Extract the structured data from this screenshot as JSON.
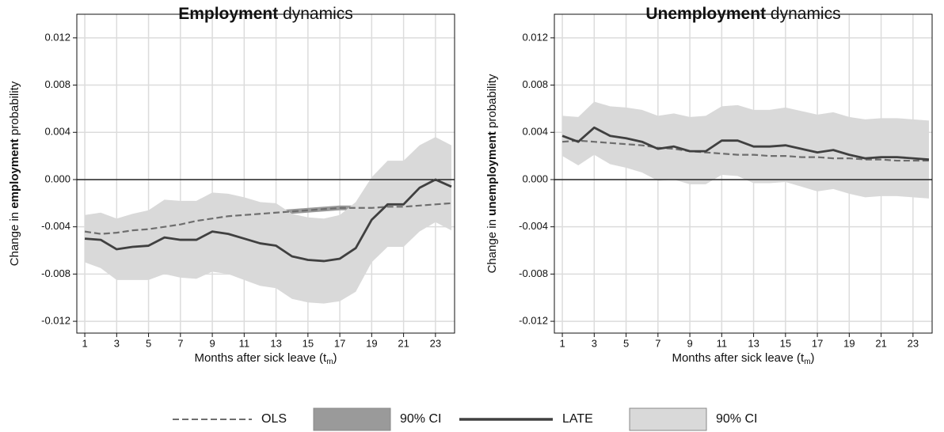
{
  "chart_data": [
    {
      "type": "line",
      "title": [
        "Employment",
        "dynamics"
      ],
      "ylabel": [
        "Change in",
        "employment",
        "probability"
      ],
      "xlabel": [
        "Months after sick leave (t",
        "m",
        ")"
      ],
      "x": [
        1,
        2,
        3,
        4,
        5,
        6,
        7,
        8,
        9,
        10,
        11,
        12,
        13,
        14,
        15,
        16,
        17,
        18,
        19,
        20,
        21,
        22,
        23,
        24
      ],
      "xlim": [
        0.5,
        24.2
      ],
      "xticks": [
        1,
        3,
        5,
        7,
        9,
        11,
        13,
        15,
        17,
        19,
        21,
        23
      ],
      "ylim": [
        -0.013,
        0.014
      ],
      "yticks": [
        -0.012,
        -0.008,
        -0.004,
        {
          "value": 0,
          "label": "0.000"
        },
        0.004,
        0.008,
        0.012
      ],
      "refline": 0,
      "grid": true,
      "series": [
        {
          "name": "OLS",
          "kind": "dashed",
          "color": "#6e6e6e",
          "values": [
            -0.0044,
            -0.0046,
            -0.0045,
            -0.0043,
            -0.0042,
            -0.004,
            -0.0038,
            -0.0035,
            -0.0033,
            -0.0031,
            -0.003,
            -0.0029,
            -0.0028,
            -0.0027,
            -0.0026,
            -0.0025,
            -0.0024,
            -0.0024,
            -0.0024,
            -0.0023,
            -0.0023,
            -0.0022,
            -0.0021,
            -0.002
          ]
        },
        {
          "name": "90% CI",
          "kind": "band",
          "color": "#9a9a9a",
          "upper": [
            -0.0042,
            -0.0044,
            -0.0043,
            -0.0041,
            -0.004,
            -0.0038,
            -0.0036,
            -0.0033,
            -0.0031,
            -0.0029,
            -0.0028,
            -0.0027,
            -0.0026,
            -0.0025,
            -0.0024,
            -0.0023,
            -0.0022,
            -0.0022,
            -0.0022,
            -0.0021,
            -0.0021,
            -0.002,
            -0.0019,
            -0.0018
          ],
          "lower": [
            -0.0046,
            -0.0048,
            -0.0047,
            -0.0045,
            -0.0044,
            -0.0042,
            -0.004,
            -0.0037,
            -0.0035,
            -0.0033,
            -0.0032,
            -0.0031,
            -0.003,
            -0.0029,
            -0.0028,
            -0.0027,
            -0.0026,
            -0.0026,
            -0.0026,
            -0.0025,
            -0.0025,
            -0.0024,
            -0.0023,
            -0.0022
          ]
        },
        {
          "name": "LATE",
          "kind": "solid",
          "color": "#404040",
          "values": [
            -0.005,
            -0.0051,
            -0.0059,
            -0.0057,
            -0.0056,
            -0.0049,
            -0.0051,
            -0.0051,
            -0.0044,
            -0.0046,
            -0.005,
            -0.0054,
            -0.0056,
            -0.0065,
            -0.0068,
            -0.0069,
            -0.0067,
            -0.0058,
            -0.0034,
            -0.0021,
            -0.0021,
            -0.0007,
            0,
            -0.0006
          ]
        },
        {
          "name": "90% CI",
          "kind": "band",
          "color": "#d9d9d9",
          "upper": [
            -0.003,
            -0.0028,
            -0.0033,
            -0.0029,
            -0.0026,
            -0.0017,
            -0.0018,
            -0.0018,
            -0.0011,
            -0.0012,
            -0.0015,
            -0.0019,
            -0.002,
            -0.0029,
            -0.0032,
            -0.0033,
            -0.003,
            -0.0019,
            0.0002,
            0.0016,
            0.0016,
            0.0029,
            0.0036,
            0.0029
          ],
          "lower": [
            -0.007,
            -0.0075,
            -0.0085,
            -0.0085,
            -0.0085,
            -0.008,
            -0.0083,
            -0.0084,
            -0.0078,
            -0.008,
            -0.0085,
            -0.009,
            -0.0092,
            -0.0101,
            -0.0104,
            -0.0105,
            -0.0103,
            -0.0095,
            -0.007,
            -0.0057,
            -0.0057,
            -0.0044,
            -0.0036,
            -0.0043
          ]
        }
      ]
    },
    {
      "type": "line",
      "title": [
        "Unemployment",
        "dynamics"
      ],
      "ylabel": [
        "Change in",
        "unemployment",
        "probability"
      ],
      "xlabel": [
        "Months after sick leave (t",
        "m",
        ")"
      ],
      "x": [
        1,
        2,
        3,
        4,
        5,
        6,
        7,
        8,
        9,
        10,
        11,
        12,
        13,
        14,
        15,
        16,
        17,
        18,
        19,
        20,
        21,
        22,
        23,
        24
      ],
      "xlim": [
        0.5,
        24.2
      ],
      "xticks": [
        1,
        3,
        5,
        7,
        9,
        11,
        13,
        15,
        17,
        19,
        21,
        23
      ],
      "ylim": [
        -0.013,
        0.014
      ],
      "yticks": [
        -0.012,
        -0.008,
        -0.004,
        {
          "value": 0,
          "label": "0.000"
        },
        0.004,
        0.008,
        0.012
      ],
      "refline": 0,
      "grid": true,
      "series": [
        {
          "name": "OLS",
          "kind": "dashed",
          "color": "#6e6e6e",
          "values": [
            0.0032,
            0.0033,
            0.0032,
            0.0031,
            0.003,
            0.0029,
            0.0027,
            0.0026,
            0.0024,
            0.0023,
            0.0022,
            0.0021,
            0.0021,
            0.002,
            0.002,
            0.0019,
            0.0019,
            0.0018,
            0.0018,
            0.0017,
            0.0017,
            0.0016,
            0.0016,
            0.0016
          ]
        },
        {
          "name": "90% CI",
          "kind": "band",
          "color": "#9a9a9a",
          "upper": [
            0.0034,
            0.0035,
            0.0034,
            0.0033,
            0.0032,
            0.0031,
            0.0029,
            0.0028,
            0.0026,
            0.0025,
            0.0024,
            0.0023,
            0.0023,
            0.0022,
            0.0022,
            0.0021,
            0.0021,
            0.002,
            0.002,
            0.0019,
            0.0019,
            0.0018,
            0.0018,
            0.0018
          ],
          "lower": [
            0.003,
            0.0031,
            0.003,
            0.0029,
            0.0028,
            0.0027,
            0.0025,
            0.0024,
            0.0022,
            0.0021,
            0.002,
            0.0019,
            0.0019,
            0.0018,
            0.0018,
            0.0017,
            0.0017,
            0.0016,
            0.0016,
            0.0015,
            0.0015,
            0.0014,
            0.0014,
            0.0014
          ]
        },
        {
          "name": "LATE",
          "kind": "solid",
          "color": "#404040",
          "values": [
            0.0037,
            0.0032,
            0.0044,
            0.0037,
            0.0035,
            0.0032,
            0.0026,
            0.0028,
            0.0024,
            0.0024,
            0.0033,
            0.0033,
            0.0028,
            0.0028,
            0.0029,
            0.0026,
            0.0023,
            0.0025,
            0.0021,
            0.0018,
            0.0019,
            0.0019,
            0.0018,
            0.0017
          ]
        },
        {
          "name": "90% CI",
          "kind": "band",
          "color": "#d9d9d9",
          "upper": [
            0.0054,
            0.0053,
            0.0066,
            0.0062,
            0.0061,
            0.0059,
            0.0054,
            0.0056,
            0.0053,
            0.0054,
            0.0062,
            0.0063,
            0.0059,
            0.0059,
            0.0061,
            0.0058,
            0.0055,
            0.0057,
            0.0053,
            0.0051,
            0.0052,
            0.0052,
            0.0051,
            0.005
          ],
          "lower": [
            0.002,
            0.0012,
            0.0021,
            0.0013,
            0.001,
            0.0006,
            -0.0001,
            0,
            -0.0004,
            -0.0004,
            0.0004,
            0.0003,
            -0.0003,
            -0.0003,
            -0.0002,
            -0.0006,
            -0.001,
            -0.0008,
            -0.0012,
            -0.0015,
            -0.0014,
            -0.0014,
            -0.0015,
            -0.0016
          ]
        }
      ]
    }
  ]
}
